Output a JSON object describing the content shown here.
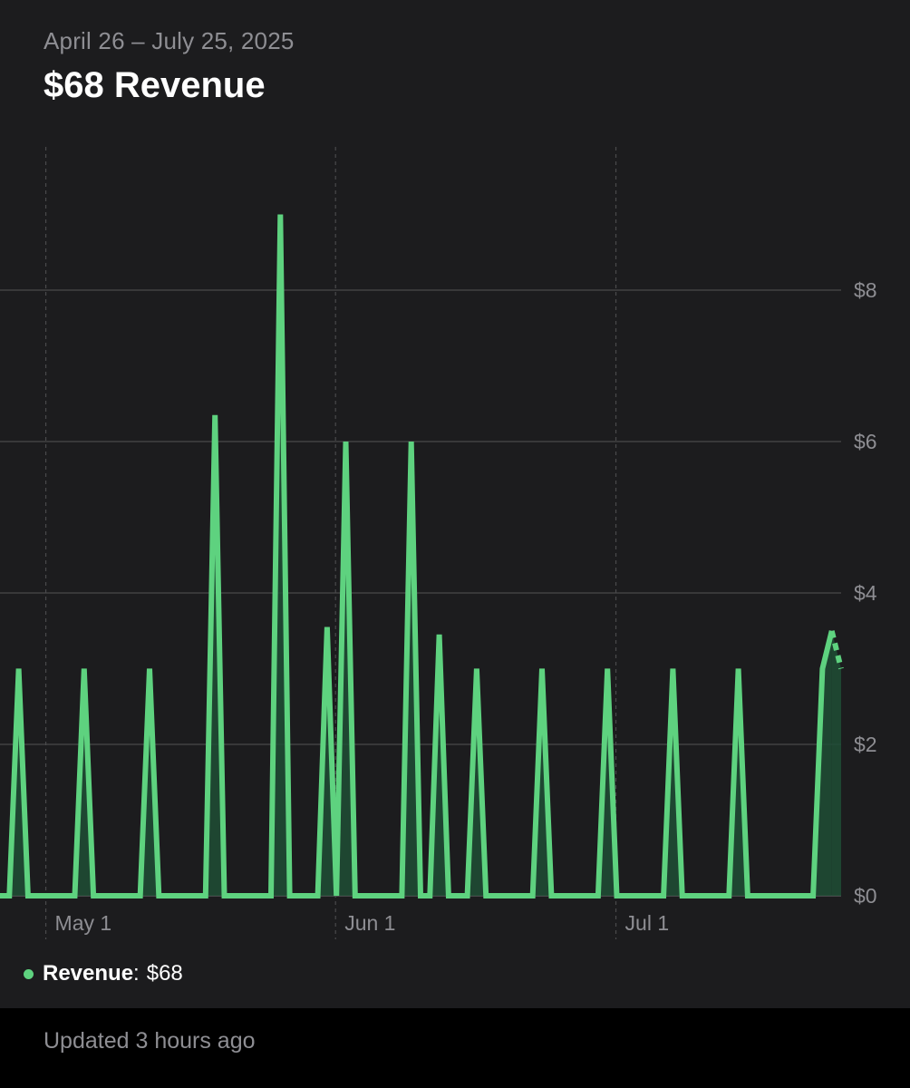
{
  "header": {
    "date_range": "April 26 – July 25, 2025",
    "headline": "$68 Revenue"
  },
  "legend": {
    "name": "Revenue",
    "separator": ":",
    "value": "$68",
    "color": "#5ed27f"
  },
  "footer": {
    "updated": "Updated 3 hours ago"
  },
  "chart_data": {
    "type": "area",
    "x_start": "2025-04-26",
    "x_end": "2025-07-25",
    "x_ticks": [
      {
        "date": "2025-05-01",
        "label": "May 1"
      },
      {
        "date": "2025-06-01",
        "label": "Jun 1"
      },
      {
        "date": "2025-07-01",
        "label": "Jul 1"
      }
    ],
    "y_ticks": [
      {
        "value": 0,
        "label": "$0"
      },
      {
        "value": 2,
        "label": "$2"
      },
      {
        "value": 4,
        "label": "$4"
      },
      {
        "value": 6,
        "label": "$6"
      },
      {
        "value": 8,
        "label": "$8"
      }
    ],
    "ylim": [
      0,
      10
    ],
    "line_color": "#5ed27f",
    "fill_color": "#1e4d35",
    "grid": true,
    "series": [
      {
        "name": "Revenue",
        "points": [
          [
            "2025-04-26",
            0
          ],
          [
            "2025-04-27",
            0
          ],
          [
            "2025-04-28",
            3
          ],
          [
            "2025-04-29",
            0
          ],
          [
            "2025-04-30",
            0
          ],
          [
            "2025-05-01",
            0
          ],
          [
            "2025-05-02",
            0
          ],
          [
            "2025-05-03",
            0
          ],
          [
            "2025-05-04",
            0
          ],
          [
            "2025-05-05",
            3
          ],
          [
            "2025-05-06",
            0
          ],
          [
            "2025-05-07",
            0
          ],
          [
            "2025-05-08",
            0
          ],
          [
            "2025-05-09",
            0
          ],
          [
            "2025-05-10",
            0
          ],
          [
            "2025-05-11",
            0
          ],
          [
            "2025-05-12",
            3
          ],
          [
            "2025-05-13",
            0
          ],
          [
            "2025-05-14",
            0
          ],
          [
            "2025-05-15",
            0
          ],
          [
            "2025-05-16",
            0
          ],
          [
            "2025-05-17",
            0
          ],
          [
            "2025-05-18",
            0
          ],
          [
            "2025-05-19",
            6.35
          ],
          [
            "2025-05-20",
            0
          ],
          [
            "2025-05-21",
            0
          ],
          [
            "2025-05-22",
            0
          ],
          [
            "2025-05-23",
            0
          ],
          [
            "2025-05-24",
            0
          ],
          [
            "2025-05-25",
            0
          ],
          [
            "2025-05-26",
            9
          ],
          [
            "2025-05-27",
            0
          ],
          [
            "2025-05-28",
            0
          ],
          [
            "2025-05-29",
            0
          ],
          [
            "2025-05-30",
            0
          ],
          [
            "2025-05-31",
            3.55
          ],
          [
            "2025-06-01",
            0
          ],
          [
            "2025-06-02",
            6
          ],
          [
            "2025-06-03",
            0
          ],
          [
            "2025-06-04",
            0
          ],
          [
            "2025-06-05",
            0
          ],
          [
            "2025-06-06",
            0
          ],
          [
            "2025-06-07",
            0
          ],
          [
            "2025-06-08",
            0
          ],
          [
            "2025-06-09",
            6
          ],
          [
            "2025-06-10",
            0
          ],
          [
            "2025-06-11",
            0
          ],
          [
            "2025-06-12",
            3.45
          ],
          [
            "2025-06-13",
            0
          ],
          [
            "2025-06-14",
            0
          ],
          [
            "2025-06-15",
            0
          ],
          [
            "2025-06-16",
            3
          ],
          [
            "2025-06-17",
            0
          ],
          [
            "2025-06-18",
            0
          ],
          [
            "2025-06-19",
            0
          ],
          [
            "2025-06-20",
            0
          ],
          [
            "2025-06-21",
            0
          ],
          [
            "2025-06-22",
            0
          ],
          [
            "2025-06-23",
            3
          ],
          [
            "2025-06-24",
            0
          ],
          [
            "2025-06-25",
            0
          ],
          [
            "2025-06-26",
            0
          ],
          [
            "2025-06-27",
            0
          ],
          [
            "2025-06-28",
            0
          ],
          [
            "2025-06-29",
            0
          ],
          [
            "2025-06-30",
            3
          ],
          [
            "2025-07-01",
            0
          ],
          [
            "2025-07-02",
            0
          ],
          [
            "2025-07-03",
            0
          ],
          [
            "2025-07-04",
            0
          ],
          [
            "2025-07-05",
            0
          ],
          [
            "2025-07-06",
            0
          ],
          [
            "2025-07-07",
            3
          ],
          [
            "2025-07-08",
            0
          ],
          [
            "2025-07-09",
            0
          ],
          [
            "2025-07-10",
            0
          ],
          [
            "2025-07-11",
            0
          ],
          [
            "2025-07-12",
            0
          ],
          [
            "2025-07-13",
            0
          ],
          [
            "2025-07-14",
            3
          ],
          [
            "2025-07-15",
            0
          ],
          [
            "2025-07-16",
            0
          ],
          [
            "2025-07-17",
            0
          ],
          [
            "2025-07-18",
            0
          ],
          [
            "2025-07-19",
            0
          ],
          [
            "2025-07-20",
            0
          ],
          [
            "2025-07-21",
            0
          ],
          [
            "2025-07-22",
            0
          ],
          [
            "2025-07-23",
            3
          ],
          [
            "2025-07-24",
            3.5
          ]
        ],
        "projected": [
          [
            "2025-07-24",
            3.5
          ],
          [
            "2025-07-25",
            3
          ]
        ]
      }
    ]
  }
}
